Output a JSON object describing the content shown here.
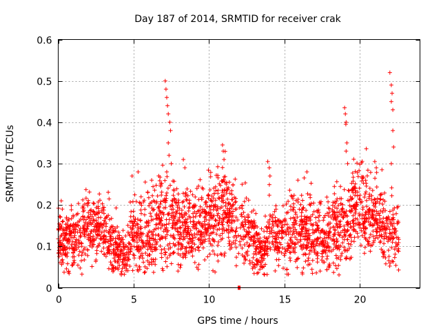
{
  "chart_data": {
    "type": "scatter",
    "title": "Day 187 of 2014, SRMTID for receiver crak",
    "xlabel": "GPS time / hours",
    "ylabel": "SRMTID / TECUs",
    "xlim": [
      0,
      24
    ],
    "ylim": [
      0,
      0.6
    ],
    "xticks": [
      "0",
      "5",
      "10",
      "15",
      "20"
    ],
    "yticks": [
      "0",
      "0.1",
      "0.2",
      "0.3",
      "0.4",
      "0.5",
      "0.6"
    ],
    "grid": true,
    "marker": "+",
    "color": "#ff0000",
    "series": [
      {
        "name": "SRMTID",
        "profile_note": "approximate envelope of the dense scatter: [hour, typical level, spread]",
        "profile": [
          [
            0.0,
            0.12,
            0.035
          ],
          [
            1.0,
            0.11,
            0.04
          ],
          [
            2.0,
            0.14,
            0.04
          ],
          [
            3.0,
            0.14,
            0.035
          ],
          [
            3.8,
            0.09,
            0.03
          ],
          [
            4.5,
            0.08,
            0.025
          ],
          [
            5.0,
            0.14,
            0.04
          ],
          [
            6.0,
            0.13,
            0.045
          ],
          [
            7.0,
            0.17,
            0.06
          ],
          [
            8.0,
            0.14,
            0.045
          ],
          [
            9.0,
            0.15,
            0.04
          ],
          [
            10.0,
            0.16,
            0.05
          ],
          [
            11.0,
            0.19,
            0.05
          ],
          [
            12.0,
            0.14,
            0.04
          ],
          [
            13.0,
            0.12,
            0.04
          ],
          [
            13.6,
            0.08,
            0.03
          ],
          [
            14.0,
            0.14,
            0.045
          ],
          [
            15.0,
            0.12,
            0.04
          ],
          [
            16.0,
            0.15,
            0.045
          ],
          [
            17.0,
            0.12,
            0.04
          ],
          [
            18.0,
            0.12,
            0.04
          ],
          [
            19.0,
            0.15,
            0.05
          ],
          [
            20.0,
            0.21,
            0.05
          ],
          [
            21.0,
            0.17,
            0.045
          ],
          [
            22.0,
            0.14,
            0.05
          ],
          [
            22.6,
            0.12,
            0.03
          ]
        ],
        "spikes": [
          [
            7.1,
            0.5
          ],
          [
            7.15,
            0.48
          ],
          [
            7.2,
            0.46
          ],
          [
            7.25,
            0.44
          ],
          [
            7.3,
            0.42
          ],
          [
            7.4,
            0.4
          ],
          [
            7.45,
            0.38
          ],
          [
            7.3,
            0.35
          ],
          [
            7.35,
            0.32
          ],
          [
            7.5,
            0.3
          ],
          [
            7.2,
            0.28
          ],
          [
            8.3,
            0.31
          ],
          [
            8.4,
            0.29
          ],
          [
            10.9,
            0.345
          ],
          [
            10.95,
            0.33
          ],
          [
            11.0,
            0.31
          ],
          [
            13.9,
            0.305
          ],
          [
            14.0,
            0.29
          ],
          [
            14.05,
            0.27
          ],
          [
            16.5,
            0.28
          ],
          [
            19.0,
            0.435
          ],
          [
            19.05,
            0.42
          ],
          [
            19.1,
            0.4
          ],
          [
            19.08,
            0.395
          ],
          [
            19.15,
            0.35
          ],
          [
            19.1,
            0.33
          ],
          [
            19.2,
            0.3
          ],
          [
            21.0,
            0.305
          ],
          [
            21.1,
            0.29
          ],
          [
            22.0,
            0.52
          ],
          [
            22.1,
            0.49
          ],
          [
            22.15,
            0.47
          ],
          [
            22.1,
            0.45
          ],
          [
            22.2,
            0.43
          ],
          [
            22.2,
            0.38
          ],
          [
            22.25,
            0.34
          ],
          [
            22.1,
            0.3
          ],
          [
            6.2,
            0.26
          ],
          [
            4.9,
            0.27
          ],
          [
            5.3,
            0.28
          ],
          [
            9.2,
            0.24
          ],
          [
            12.2,
            0.25
          ],
          [
            15.9,
            0.26
          ]
        ],
        "gap_marker": [
          12.0,
          0.0
        ]
      }
    ]
  }
}
